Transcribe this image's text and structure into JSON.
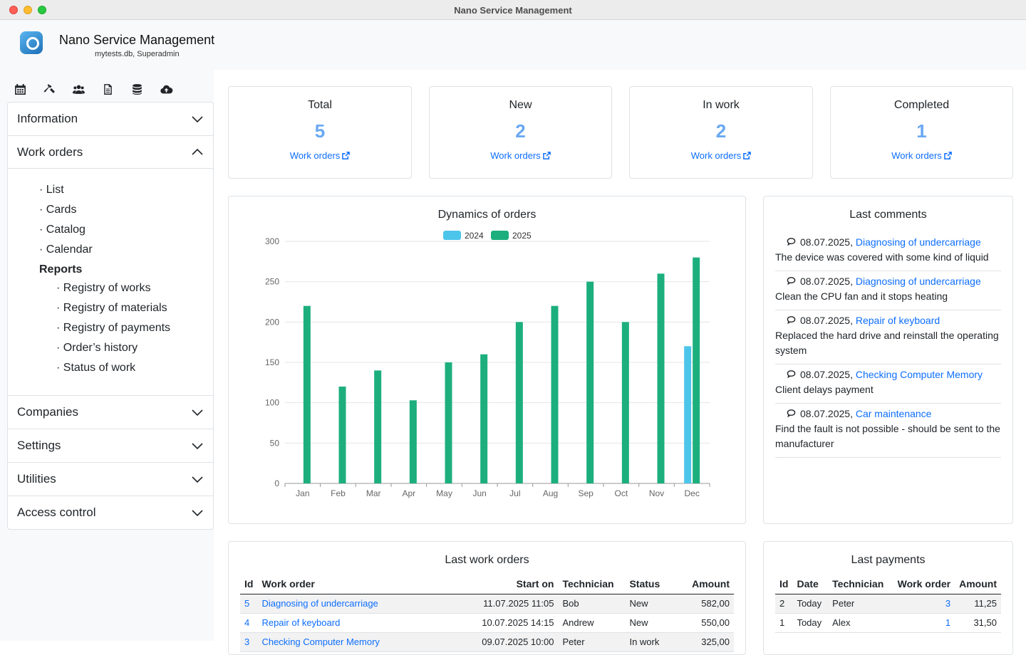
{
  "window": {
    "title": "Nano Service Management"
  },
  "app": {
    "title": "Nano Service Management",
    "subtitle": "mytests.db, Superadmin"
  },
  "toolbar": [
    "calendar-icon",
    "hammer-icon",
    "users-icon",
    "document-icon",
    "database-icon",
    "cloud-upload-icon"
  ],
  "sidebar": {
    "sections": [
      {
        "label": "Information",
        "open": false
      },
      {
        "label": "Work orders",
        "open": true
      },
      {
        "label": "Companies",
        "open": false
      },
      {
        "label": "Settings",
        "open": false
      },
      {
        "label": "Utilities",
        "open": false
      },
      {
        "label": "Access control",
        "open": false
      }
    ],
    "work_orders_menu": [
      "· List",
      "· Cards",
      "· Catalog",
      "· Calendar"
    ],
    "reports_label": "Reports",
    "reports_menu": [
      "· Registry of works",
      "· Registry of materials",
      "· Registry of payments",
      "· Order’s history",
      "· Status of work"
    ]
  },
  "stats": [
    {
      "title": "Total",
      "value": "5",
      "link": "Work orders"
    },
    {
      "title": "New",
      "value": "2",
      "link": "Work orders"
    },
    {
      "title": "In work",
      "value": "2",
      "link": "Work orders"
    },
    {
      "title": "Completed",
      "value": "1",
      "link": "Work orders"
    }
  ],
  "chart": {
    "title": "Dynamics of orders",
    "chart_data": {
      "type": "bar",
      "title": "Dynamics of orders",
      "categories": [
        "Jan",
        "Feb",
        "Mar",
        "Apr",
        "May",
        "Jun",
        "Jul",
        "Aug",
        "Sep",
        "Oct",
        "Nov",
        "Dec"
      ],
      "series": [
        {
          "name": "2024",
          "color": "#4cc5eb",
          "values": [
            0,
            0,
            0,
            0,
            0,
            0,
            0,
            0,
            0,
            0,
            0,
            170
          ]
        },
        {
          "name": "2025",
          "color": "#1caf7d",
          "values": [
            220,
            120,
            140,
            103,
            150,
            160,
            200,
            220,
            250,
            200,
            260,
            280
          ]
        }
      ],
      "ylim": [
        0,
        300
      ],
      "yticks": [
        "0",
        "50",
        "100",
        "150",
        "200",
        "250",
        "300"
      ],
      "legend": "top",
      "grid": true
    }
  },
  "comments": {
    "title": "Last comments",
    "items": [
      {
        "date": "08.07.2025,",
        "order": "Diagnosing of undercarriage",
        "text": "The device was covered with some kind of liquid"
      },
      {
        "date": "08.07.2025,",
        "order": "Diagnosing of undercarriage",
        "text": "Clean the CPU fan and it stops heating"
      },
      {
        "date": "08.07.2025,",
        "order": "Repair of keyboard",
        "text": "Replaced the hard drive and reinstall the operating system"
      },
      {
        "date": "08.07.2025,",
        "order": "Checking Computer Memory",
        "text": "Client delays payment"
      },
      {
        "date": "08.07.2025,",
        "order": "Car maintenance",
        "text": "Find the fault is not possible - should be sent to the manufacturer"
      }
    ]
  },
  "work_orders": {
    "title": "Last work orders",
    "headers": [
      "Id",
      "Work order",
      "Start on",
      "Technician",
      "Status",
      "Amount"
    ],
    "rows": [
      {
        "id": "5",
        "order": "Diagnosing of undercarriage",
        "start": "11.07.2025 11:05",
        "tech": "Bob",
        "status": "New",
        "amount": "582,00"
      },
      {
        "id": "4",
        "order": "Repair of keyboard",
        "start": "10.07.2025 14:15",
        "tech": "Andrew",
        "status": "New",
        "amount": "550,00"
      },
      {
        "id": "3",
        "order": "Checking Computer Memory",
        "start": "09.07.2025 10:00",
        "tech": "Peter",
        "status": "In work",
        "amount": "325,00"
      }
    ]
  },
  "payments": {
    "title": "Last payments",
    "headers": [
      "Id",
      "Date",
      "Technician",
      "Work order",
      "Amount"
    ],
    "rows": [
      {
        "id": "2",
        "date": "Today",
        "tech": "Peter",
        "order": "3",
        "amount": "11,25"
      },
      {
        "id": "1",
        "date": "Today",
        "tech": "Alex",
        "order": "1",
        "amount": "31,50"
      }
    ]
  }
}
